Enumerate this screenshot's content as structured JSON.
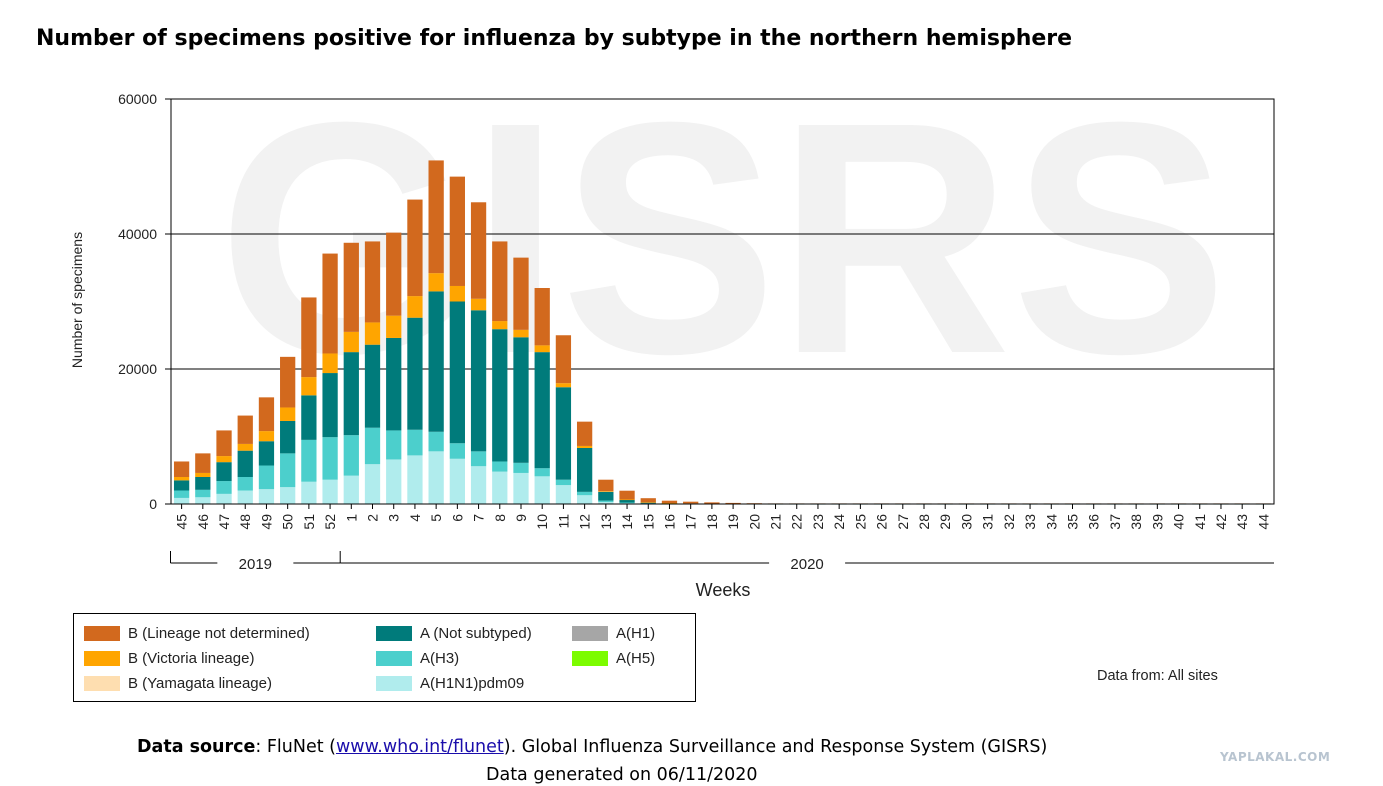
{
  "title": "Number of specimens positive for influenza by subtype in the northern hemisphere",
  "watermark": "GISRS",
  "chart_data": {
    "type": "bar",
    "stacked": true,
    "title": "Number of specimens positive for influenza by subtype in the northern hemisphere",
    "xlabel": "Weeks",
    "ylabel": "Number of specimens",
    "ylim": [
      0,
      60000
    ],
    "yticks": [
      0,
      20000,
      40000,
      60000
    ],
    "grid": true,
    "categories": [
      "45",
      "46",
      "47",
      "48",
      "49",
      "50",
      "51",
      "52",
      "1",
      "2",
      "3",
      "4",
      "5",
      "6",
      "7",
      "8",
      "9",
      "10",
      "11",
      "12",
      "13",
      "14",
      "15",
      "16",
      "17",
      "18",
      "19",
      "20",
      "21",
      "22",
      "23",
      "24",
      "25",
      "26",
      "27",
      "28",
      "29",
      "30",
      "31",
      "32",
      "33",
      "34",
      "35",
      "36",
      "37",
      "38",
      "39",
      "40",
      "41",
      "42",
      "43",
      "44"
    ],
    "year_groups": [
      {
        "label": "2019",
        "from": "45",
        "to": "52"
      },
      {
        "label": "2020",
        "from": "1",
        "to": "44"
      }
    ],
    "series": [
      {
        "name": "A(H1N1)pdm09",
        "color": "#b0eced",
        "values": [
          900,
          1000,
          1500,
          2000,
          2200,
          2500,
          3300,
          3600,
          4200,
          5900,
          6600,
          7200,
          7800,
          6700,
          5600,
          4800,
          4600,
          4100,
          2800,
          1300,
          300,
          120,
          50,
          30,
          20,
          15,
          10,
          8,
          6,
          6,
          5,
          5,
          5,
          5,
          5,
          5,
          5,
          5,
          5,
          5,
          5,
          5,
          5,
          5,
          5,
          5,
          5,
          5,
          5,
          5,
          5,
          5
        ]
      },
      {
        "name": "A(H3)",
        "color": "#4ccfcc",
        "values": [
          1100,
          1100,
          1900,
          2000,
          3500,
          5000,
          6200,
          6300,
          6000,
          5400,
          4300,
          3800,
          2900,
          2300,
          2200,
          1500,
          1500,
          1200,
          800,
          500,
          200,
          100,
          40,
          20,
          15,
          10,
          8,
          6,
          5,
          5,
          5,
          5,
          5,
          5,
          5,
          5,
          5,
          5,
          5,
          5,
          5,
          5,
          5,
          5,
          5,
          5,
          5,
          5,
          5,
          5,
          5,
          5
        ]
      },
      {
        "name": "A(Not subtyped)",
        "color": "#007b7b",
        "values": [
          1500,
          1900,
          2800,
          3900,
          3600,
          4800,
          6600,
          9500,
          12300,
          12300,
          13700,
          16600,
          20800,
          21000,
          20900,
          19600,
          18600,
          17200,
          13700,
          6500,
          1300,
          400,
          150,
          80,
          50,
          30,
          20,
          15,
          10,
          10,
          10,
          10,
          10,
          10,
          10,
          10,
          10,
          10,
          10,
          10,
          10,
          10,
          10,
          10,
          10,
          10,
          10,
          10,
          10,
          10,
          10,
          10
        ]
      },
      {
        "name": "A(H1)",
        "color": "#a6a6a6",
        "values": [
          0,
          0,
          0,
          0,
          0,
          0,
          0,
          0,
          0,
          0,
          0,
          0,
          0,
          0,
          0,
          0,
          0,
          0,
          0,
          0,
          0,
          0,
          0,
          0,
          0,
          0,
          0,
          0,
          0,
          0,
          0,
          0,
          0,
          0,
          0,
          0,
          0,
          0,
          0,
          0,
          0,
          0,
          0,
          0,
          0,
          0,
          0,
          0,
          0,
          0,
          0,
          0
        ]
      },
      {
        "name": "A(H5)",
        "color": "#7cfc00",
        "values": [
          0,
          0,
          0,
          0,
          0,
          0,
          0,
          0,
          0,
          0,
          0,
          0,
          0,
          0,
          0,
          0,
          0,
          0,
          0,
          0,
          0,
          0,
          0,
          0,
          0,
          0,
          0,
          0,
          0,
          0,
          0,
          0,
          0,
          0,
          0,
          0,
          0,
          0,
          0,
          0,
          0,
          0,
          0,
          0,
          0,
          0,
          0,
          0,
          0,
          0,
          0,
          0
        ]
      },
      {
        "name": "B (Yamagata lineage)",
        "color": "#fedeb0",
        "values": [
          0,
          0,
          0,
          0,
          0,
          0,
          0,
          0,
          0,
          0,
          0,
          0,
          0,
          0,
          0,
          0,
          0,
          0,
          0,
          0,
          0,
          0,
          0,
          0,
          0,
          0,
          0,
          0,
          0,
          0,
          0,
          0,
          0,
          0,
          0,
          0,
          0,
          0,
          0,
          0,
          0,
          0,
          0,
          0,
          0,
          0,
          0,
          0,
          0,
          0,
          0,
          0
        ]
      },
      {
        "name": "B (Victoria lineage)",
        "color": "#ffa500",
        "values": [
          500,
          600,
          900,
          1000,
          1500,
          2000,
          2700,
          2900,
          3000,
          3300,
          3300,
          3200,
          2700,
          2300,
          1700,
          1200,
          1100,
          1000,
          600,
          300,
          100,
          50,
          20,
          10,
          8,
          6,
          5,
          5,
          5,
          5,
          5,
          5,
          5,
          5,
          5,
          5,
          5,
          5,
          5,
          5,
          5,
          5,
          5,
          5,
          5,
          5,
          5,
          5,
          5,
          5,
          5,
          5
        ]
      },
      {
        "name": "B (Lineage not determined)",
        "color": "#d2691e",
        "values": [
          2300,
          2900,
          3800,
          4200,
          5000,
          7500,
          11800,
          14800,
          13200,
          12000,
          12300,
          14300,
          16700,
          16200,
          14300,
          11800,
          10700,
          8500,
          7100,
          3600,
          1700,
          1300,
          600,
          350,
          250,
          180,
          120,
          80,
          60,
          60,
          60,
          60,
          60,
          60,
          60,
          60,
          60,
          60,
          60,
          60,
          60,
          60,
          60,
          60,
          60,
          60,
          60,
          60,
          60,
          60,
          60,
          60
        ]
      }
    ]
  },
  "legend": {
    "items": [
      {
        "label": "B (Lineage not determined)",
        "color": "#d2691e"
      },
      {
        "label": "B (Victoria lineage)",
        "color": "#ffa500"
      },
      {
        "label": "B (Yamagata lineage)",
        "color": "#fedeb0"
      },
      {
        "label": "A (Not subtyped)",
        "color": "#007b7b"
      },
      {
        "label": "A(H3)",
        "color": "#4ccfcc"
      },
      {
        "label": "A(H1N1)pdm09",
        "color": "#b0eced"
      },
      {
        "label": "A(H1)",
        "color": "#a6a6a6"
      },
      {
        "label": "A(H5)",
        "color": "#7cfc00"
      }
    ]
  },
  "data_from": "Data from: All sites",
  "source": {
    "prefix": "Data source",
    "text1": ": FluNet (",
    "link": "www.who.int/flunet",
    "text2": "). Global Influenza Surveillance and Response System (GISRS)"
  },
  "generated": "Data generated on 06/11/2020",
  "site_watermark": "YAPLAKAL.COM"
}
